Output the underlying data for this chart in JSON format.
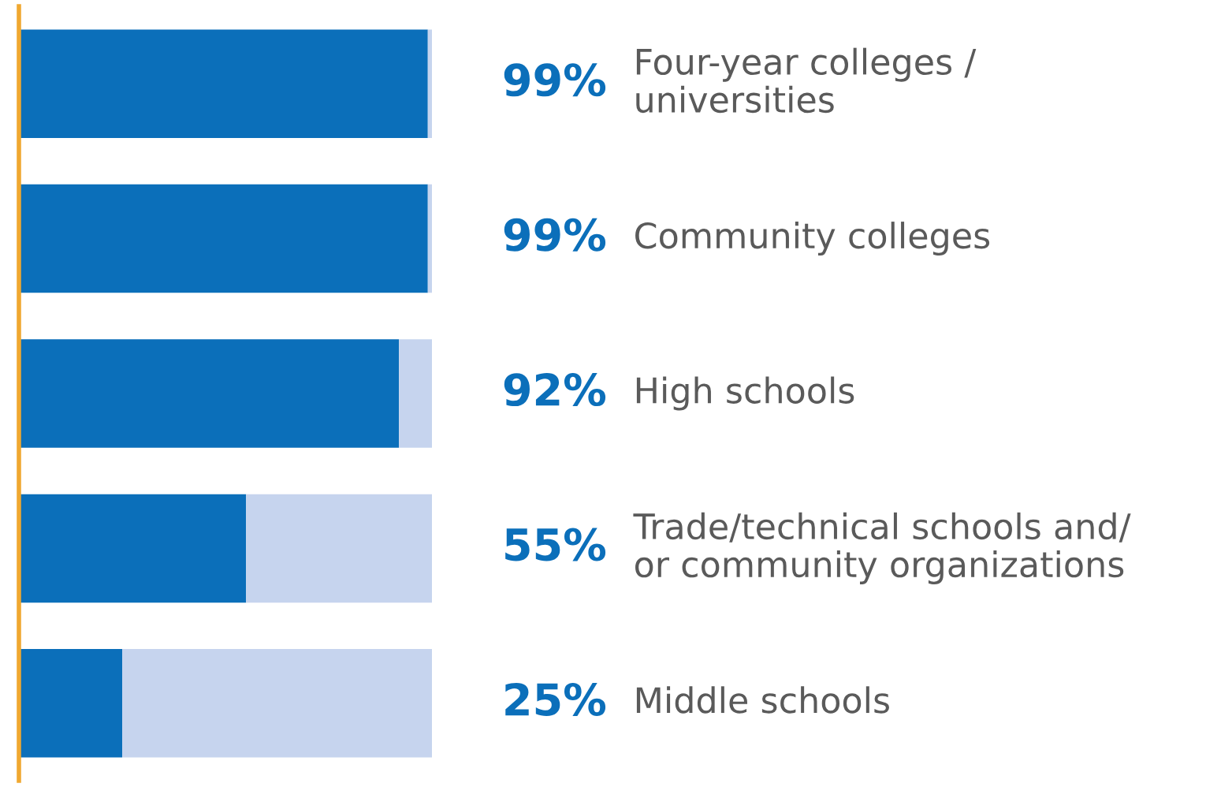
{
  "chart_data": {
    "type": "bar",
    "orientation": "horizontal",
    "stacked": true,
    "categories": [
      "Four-year colleges /\nuniversities",
      "Community colleges",
      "High schools",
      "Trade/technical schools and/\nor community organizations",
      "Middle schools"
    ],
    "series": [
      {
        "color": "#0b6fba",
        "values": [
          99,
          99,
          92,
          55,
          25
        ],
        "value_labels": [
          "99%",
          "99%",
          "92%",
          "55%",
          "25%"
        ]
      },
      {
        "color": "#c6d4ee",
        "values": [
          1,
          1,
          8,
          45,
          75
        ]
      }
    ],
    "xlim": [
      0,
      100
    ]
  }
}
